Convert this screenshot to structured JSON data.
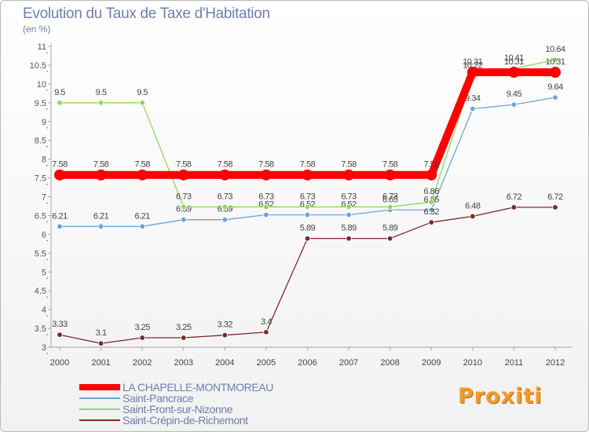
{
  "header": {
    "title": "Evolution du Taux de Taxe d'Habitation",
    "unit": "(en %)"
  },
  "chart_data": {
    "type": "line",
    "title": "Evolution du Taux de Taxe d'Habitation",
    "ylabel": "(en %)",
    "xlabel": "",
    "ylim": [
      3,
      11
    ],
    "grid": false,
    "legend_position": "bottom-left",
    "x": [
      "2000",
      "2001",
      "2002",
      "2003",
      "2004",
      "2005",
      "2006",
      "2007",
      "2008",
      "2009",
      "2010",
      "2011",
      "2012"
    ],
    "y_ticks": [
      "3",
      "3.5",
      "4",
      "4.5",
      "5",
      "5.5",
      "6",
      "6.5",
      "7",
      "7.5",
      "8",
      "8.5",
      "9",
      "9.5",
      "10",
      "10.5",
      "11"
    ],
    "series": [
      {
        "name": "LA CHAPELLE-MONTMOREAU",
        "color": "#ff0000",
        "emphasis": true,
        "values": [
          7.58,
          7.58,
          7.58,
          7.58,
          7.58,
          7.58,
          7.58,
          7.58,
          7.58,
          7.58,
          10.31,
          10.31,
          10.31
        ],
        "labels": [
          "7.58",
          "7.58",
          "7.58",
          "7.58",
          "7.58",
          "7.58",
          "7.58",
          "7.58",
          "7.58",
          "7.58",
          "10.31",
          "10.31",
          "10.31"
        ]
      },
      {
        "name": "Saint-Pancrace",
        "color": "#6ea4d4",
        "values": [
          6.21,
          6.21,
          6.21,
          6.39,
          6.39,
          6.52,
          6.52,
          6.52,
          6.65,
          6.65,
          9.34,
          9.45,
          9.64
        ],
        "labels": [
          "6.21",
          "6.21",
          "6.21",
          "6.39",
          "6.39",
          "6.52",
          "6.52",
          "6.52",
          "6.65",
          "6.65",
          "9.34",
          "9.45",
          "9.64"
        ]
      },
      {
        "name": "Saint-Front-sur-Nizonne",
        "color": "#8ed85c",
        "values": [
          9.5,
          9.5,
          9.5,
          6.73,
          6.73,
          6.73,
          6.73,
          6.73,
          6.73,
          6.86,
          10.22,
          10.41,
          10.64
        ],
        "labels": [
          "9.5",
          "9.5",
          "9.5",
          "6.73",
          "6.73",
          "6.73",
          "6.73",
          "6.73",
          "6.73",
          "6.86",
          "10.22",
          "10.41",
          "10.64"
        ]
      },
      {
        "name": "Saint-Crépin-de-Richemont",
        "color": "#7a2a2a",
        "values": [
          3.33,
          3.1,
          3.25,
          3.25,
          3.32,
          3.4,
          5.89,
          5.89,
          5.89,
          6.32,
          6.48,
          6.72,
          6.72
        ],
        "labels": [
          "3.33",
          "3.1",
          "3.25",
          "3.25",
          "3.32",
          "3.4",
          "5.89",
          "5.89",
          "5.89",
          "6.32",
          "6.48",
          "6.72",
          "6.72"
        ]
      }
    ]
  },
  "legend": {
    "items": [
      {
        "label": "LA CHAPELLE-MONTMOREAU",
        "color": "#ff0000"
      },
      {
        "label": "Saint-Pancrace",
        "color": "#6ea4d4"
      },
      {
        "label": "Saint-Front-sur-Nizonne",
        "color": "#8ed85c"
      },
      {
        "label": "Saint-Crépin-de-Richemont",
        "color": "#7a2a2a"
      }
    ]
  },
  "branding": {
    "logo_text": "Proxiti"
  }
}
